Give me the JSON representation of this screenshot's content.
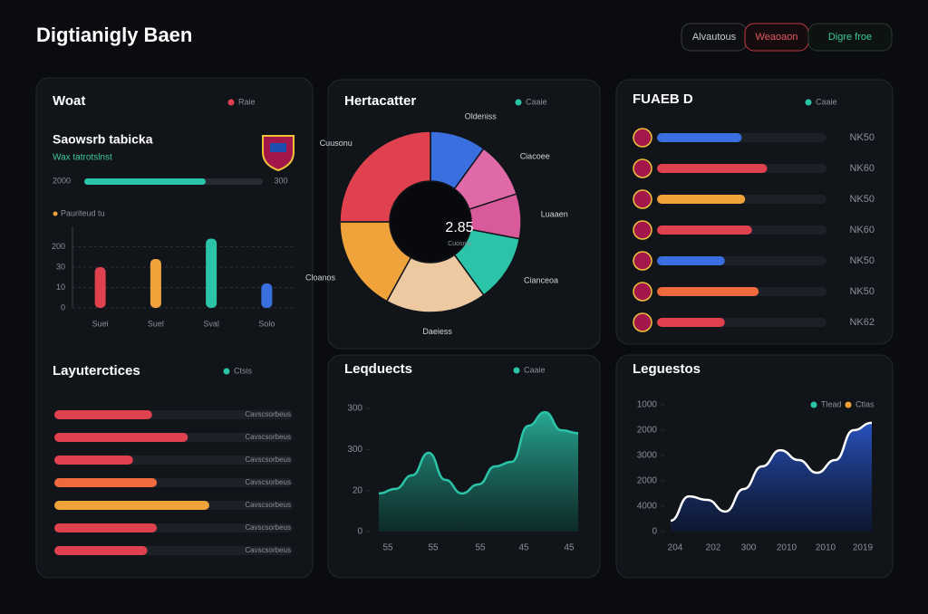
{
  "header": {
    "title": "Digtianigly Baen",
    "buttons": [
      "Alvautous",
      "Weaoaon",
      "Digre froe"
    ]
  },
  "summary": {
    "title": "Woat",
    "legend": "Raie",
    "subtitle": "Saowsrb tabicka",
    "note": "Wax tatrotslnst",
    "progress": {
      "label": "2000",
      "end_label": "300",
      "value": 68,
      "xlim": [
        0,
        100
      ],
      "color": "#2bc4a8"
    }
  },
  "mini_bar": {
    "type": "bar",
    "title": "Pauriteud tu",
    "categories": [
      "Suei",
      "Suel",
      "Sval",
      "Solo"
    ],
    "values": [
      20,
      24,
      34,
      12
    ],
    "colors": [
      "#e0414f",
      "#f0a33a",
      "#2bc4a8",
      "#3a6fe0"
    ],
    "ylim": [
      0,
      40
    ],
    "yticks": [
      0,
      10,
      {
        "value": 20,
        "label": "30"
      },
      {
        "value": 30,
        "label": "200"
      }
    ],
    "grid": true
  },
  "layers": {
    "title": "Layuterctices",
    "legend": "Ctsis",
    "xlim": [
      0,
      100
    ],
    "bars": [
      {
        "label": "Cavscsorbeus",
        "value": 41,
        "color": "#e0414f"
      },
      {
        "label": "Cavscsorbeus",
        "value": 56,
        "color": "#e0414f"
      },
      {
        "label": "Cavscsorbeus",
        "value": 33,
        "color": "#e0414f"
      },
      {
        "label": "Cavscsorbeus",
        "value": 43,
        "color": "#ef6a3c"
      },
      {
        "label": "Cavscsorbeus",
        "value": 65,
        "color": "#f0a33a"
      },
      {
        "label": "Cavscsorbeus",
        "value": 43,
        "color": "#e0414f"
      },
      {
        "label": "Cavscsorbeus",
        "value": 39,
        "color": "#e0414f"
      }
    ]
  },
  "donut": {
    "type": "pie",
    "title": "Hertacatter",
    "legend": "Caaie",
    "center": "2.85",
    "center_sub": "Cuosnia",
    "categories": [
      "Oldeniss",
      "Ciacoee",
      "Luaaen",
      "Cianceoa",
      "Daeiess",
      "Cloanos",
      "Cuusonu"
    ],
    "values": [
      10,
      10,
      8,
      12,
      18,
      17,
      25
    ],
    "colors": [
      "#3a6fe0",
      "#e06aa8",
      "#d95a9a",
      "#2bc4a8",
      "#ecc9a0",
      "#f0a33a",
      "#e0414f"
    ]
  },
  "area_mid": {
    "type": "line",
    "title": "Leqduects",
    "legend": "Caaie",
    "values": [
      9.3,
      10.4,
      13.7,
      19.2,
      12.6,
      9.3,
      11.5,
      15.9,
      17,
      25.8,
      29.1,
      24.7,
      24
    ],
    "x_tick_labels": [
      "55",
      "55",
      "55",
      "45",
      "45"
    ],
    "ylim": [
      0,
      32
    ],
    "yticks": [
      0,
      {
        "value": 10,
        "label": "20"
      },
      {
        "value": 20,
        "label": "300"
      },
      {
        "value": 30,
        "label": "300"
      }
    ],
    "color": "#2bc4a8"
  },
  "roster": {
    "title": "FUAEB D",
    "legend": "Caaie",
    "xlim": [
      0,
      100
    ],
    "rows": [
      {
        "value": 50,
        "label": "NK50",
        "color": "#3a6fe0"
      },
      {
        "value": 65,
        "label": "NK60",
        "color": "#e0414f"
      },
      {
        "value": 52,
        "label": "NK50",
        "color": "#f0a33a"
      },
      {
        "value": 56,
        "label": "NK60",
        "color": "#e0414f"
      },
      {
        "value": 40,
        "label": "NK50",
        "color": "#3a6fe0"
      },
      {
        "value": 60,
        "label": "NK50",
        "color": "#ef6a3c"
      },
      {
        "value": 40,
        "label": "NK62",
        "color": "#e0414f"
      }
    ]
  },
  "area_right": {
    "type": "line",
    "title": "Leguestos",
    "legend": [
      "Tlead",
      "Ctlas"
    ],
    "legend_colors": [
      "#2bc4a8",
      "#f0a33a"
    ],
    "values": [
      4.3,
      13.9,
      12.5,
      7.9,
      16.8,
      25.7,
      32.1,
      28.2,
      23.2,
      28.2,
      40,
      42.9
    ],
    "x_tick_labels": [
      "204",
      "202",
      "300",
      "2010",
      "2010",
      "2019"
    ],
    "ylim": [
      0,
      50
    ],
    "yticks": [
      0,
      {
        "value": 10,
        "label": "4000"
      },
      {
        "value": 20,
        "label": "2000"
      },
      {
        "value": 30,
        "label": "3000"
      },
      {
        "value": 40,
        "label": "2000"
      },
      {
        "value": 50,
        "label": "1000"
      }
    ],
    "color": "#ffffff"
  }
}
